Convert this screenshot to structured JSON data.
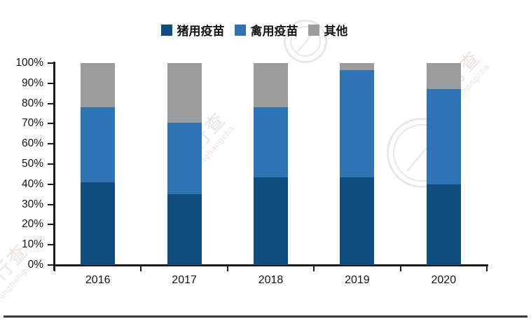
{
  "chart_data": {
    "type": "bar",
    "stacked": true,
    "percent_stacked": true,
    "title": "",
    "xlabel": "",
    "ylabel": "",
    "categories": [
      "2016",
      "2017",
      "2018",
      "2019",
      "2020"
    ],
    "series": [
      {
        "name": "猪用疫苗",
        "color": "#0E4D7E",
        "values": [
          41,
          35,
          43.5,
          43.5,
          40
        ]
      },
      {
        "name": "禽用疫苗",
        "color": "#2E74B5",
        "values": [
          37,
          35.5,
          34.5,
          53,
          47
        ]
      },
      {
        "name": "其他",
        "color": "#9C9C9C",
        "values": [
          22,
          29.5,
          22,
          3.5,
          13
        ]
      }
    ],
    "ylim": [
      0,
      100
    ],
    "yticks": [
      "0%",
      "10%",
      "20%",
      "30%",
      "40%",
      "50%",
      "60%",
      "70%",
      "80%",
      "90%",
      "100%"
    ],
    "legend_position": "top",
    "grid": false
  },
  "watermark": {
    "text_cn": "行行查",
    "text_en": "Hanghangcha"
  },
  "colors": {
    "axis": "#1a1a1a",
    "text": "#141414",
    "background": "#ffffff",
    "divider": "#3a3a3a"
  }
}
